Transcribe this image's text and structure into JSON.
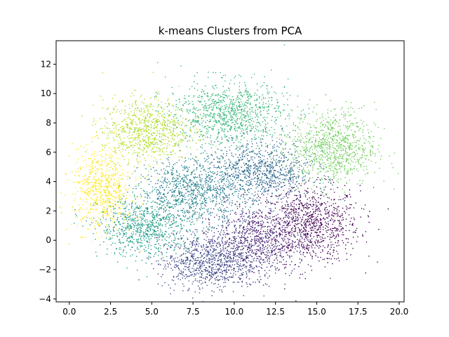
{
  "chart_data": {
    "type": "scatter",
    "title": "k-means Clusters from PCA",
    "xlabel": "",
    "ylabel": "",
    "xlim": [
      -0.8,
      20.3
    ],
    "ylim": [
      -4.2,
      13.6
    ],
    "xticks": [
      0.0,
      2.5,
      5.0,
      7.5,
      10.0,
      12.5,
      15.0,
      17.5,
      20.0
    ],
    "xtick_labels": [
      "0.0",
      "2.5",
      "5.0",
      "7.5",
      "10.0",
      "12.5",
      "15.0",
      "17.5",
      "20.0"
    ],
    "yticks": [
      -4,
      -2,
      0,
      2,
      4,
      6,
      8,
      10,
      12
    ],
    "ytick_labels": [
      "−4",
      "−2",
      "0",
      "2",
      "4",
      "6",
      "8",
      "10",
      "12"
    ],
    "grid": false,
    "legend": "none",
    "colormap": "viridis",
    "clusters": [
      {
        "id": 0,
        "color": "#440154",
        "center": [
          14.6,
          1.1
        ],
        "spread": [
          1.5,
          1.3
        ],
        "approx_points": 900
      },
      {
        "id": 1,
        "color": "#482878",
        "center": [
          11.3,
          0.0
        ],
        "spread": [
          1.6,
          1.2
        ],
        "approx_points": 900
      },
      {
        "id": 2,
        "color": "#3e4a89",
        "center": [
          8.4,
          -1.5
        ],
        "spread": [
          1.5,
          0.9
        ],
        "approx_points": 800
      },
      {
        "id": 3,
        "color": "#31688e",
        "center": [
          11.6,
          4.6
        ],
        "spread": [
          1.6,
          1.1
        ],
        "approx_points": 900
      },
      {
        "id": 4,
        "color": "#26828e",
        "center": [
          7.5,
          3.4
        ],
        "spread": [
          1.6,
          1.1
        ],
        "approx_points": 900
      },
      {
        "id": 5,
        "color": "#1f9e89",
        "center": [
          4.6,
          0.9
        ],
        "spread": [
          1.4,
          1.0
        ],
        "approx_points": 800
      },
      {
        "id": 6,
        "color": "#35b779",
        "center": [
          9.6,
          8.6
        ],
        "spread": [
          1.8,
          1.1
        ],
        "approx_points": 1000
      },
      {
        "id": 7,
        "color": "#6ece58",
        "center": [
          16.0,
          6.3
        ],
        "spread": [
          1.3,
          1.3
        ],
        "approx_points": 900
      },
      {
        "id": 8,
        "color": "#b5de2b",
        "center": [
          4.6,
          7.5
        ],
        "spread": [
          1.3,
          1.1
        ],
        "approx_points": 800
      },
      {
        "id": 9,
        "color": "#fde725",
        "center": [
          2.0,
          3.5
        ],
        "spread": [
          0.9,
          1.4
        ],
        "approx_points": 700
      }
    ]
  }
}
